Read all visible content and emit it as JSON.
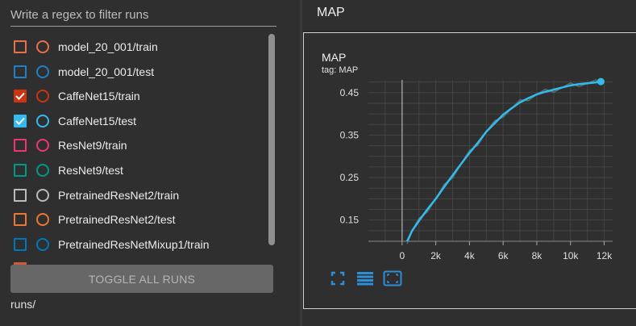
{
  "sidebar": {
    "filter_placeholder": "Write a regex to filter runs",
    "runs": [
      {
        "label": "model_20_001/train",
        "color": "#e8704a",
        "checked": false
      },
      {
        "label": "model_20_001/test",
        "color": "#1f7fc7",
        "checked": false
      },
      {
        "label": "CaffeNet15/train",
        "color": "#cc3311",
        "checked": true
      },
      {
        "label": "CaffeNet15/test",
        "color": "#33bbee",
        "checked": true
      },
      {
        "label": "ResNet9/train",
        "color": "#ee3377",
        "checked": false
      },
      {
        "label": "ResNet9/test",
        "color": "#009988",
        "checked": false
      },
      {
        "label": "PretrainedResNet2/train",
        "color": "#bbbbbb",
        "checked": false
      },
      {
        "label": "PretrainedResNet2/test",
        "color": "#ee7733",
        "checked": false
      },
      {
        "label": "PretrainedResNetMixup1/train",
        "color": "#0077bb",
        "checked": false
      }
    ],
    "toggle_label": "TOGGLE ALL RUNS",
    "runs_path": "runs/"
  },
  "main": {
    "section_title": "MAP",
    "card": {
      "title": "MAP",
      "tag": "tag: MAP"
    },
    "tools": [
      {
        "name": "fit-to-screen-icon"
      },
      {
        "name": "toggle-log-scale-icon"
      },
      {
        "name": "fit-domain-icon"
      }
    ]
  },
  "chart_data": {
    "type": "line",
    "title": "MAP",
    "xlabel": "",
    "ylabel": "",
    "xlim": [
      -2000,
      12500
    ],
    "ylim": [
      0.1,
      0.48
    ],
    "x_ticks": [
      0,
      2000,
      4000,
      6000,
      8000,
      10000,
      12000
    ],
    "x_tick_labels": [
      "0",
      "2k",
      "4k",
      "6k",
      "8k",
      "10k",
      "12k"
    ],
    "y_ticks": [
      0.15,
      0.25,
      0.35,
      0.45
    ],
    "y_tick_labels": [
      "0.15",
      "0.25",
      "0.35",
      "0.45"
    ],
    "grid": true,
    "colors": {
      "series": "#33bbee",
      "raw": "#5c7a7a"
    },
    "series": [
      {
        "name": "CaffeNet15/test",
        "x": [
          300,
          600,
          1000,
          1500,
          2000,
          2500,
          3000,
          3500,
          4000,
          4500,
          5000,
          5500,
          6000,
          6500,
          7000,
          7500,
          8000,
          8500,
          9000,
          9500,
          10000,
          10500,
          11000,
          11500,
          11800
        ],
        "y": [
          0.1,
          0.125,
          0.148,
          0.175,
          0.2,
          0.228,
          0.255,
          0.282,
          0.308,
          0.332,
          0.358,
          0.378,
          0.398,
          0.413,
          0.427,
          0.437,
          0.446,
          0.452,
          0.457,
          0.462,
          0.467,
          0.47,
          0.472,
          0.474,
          0.476
        ]
      }
    ]
  }
}
